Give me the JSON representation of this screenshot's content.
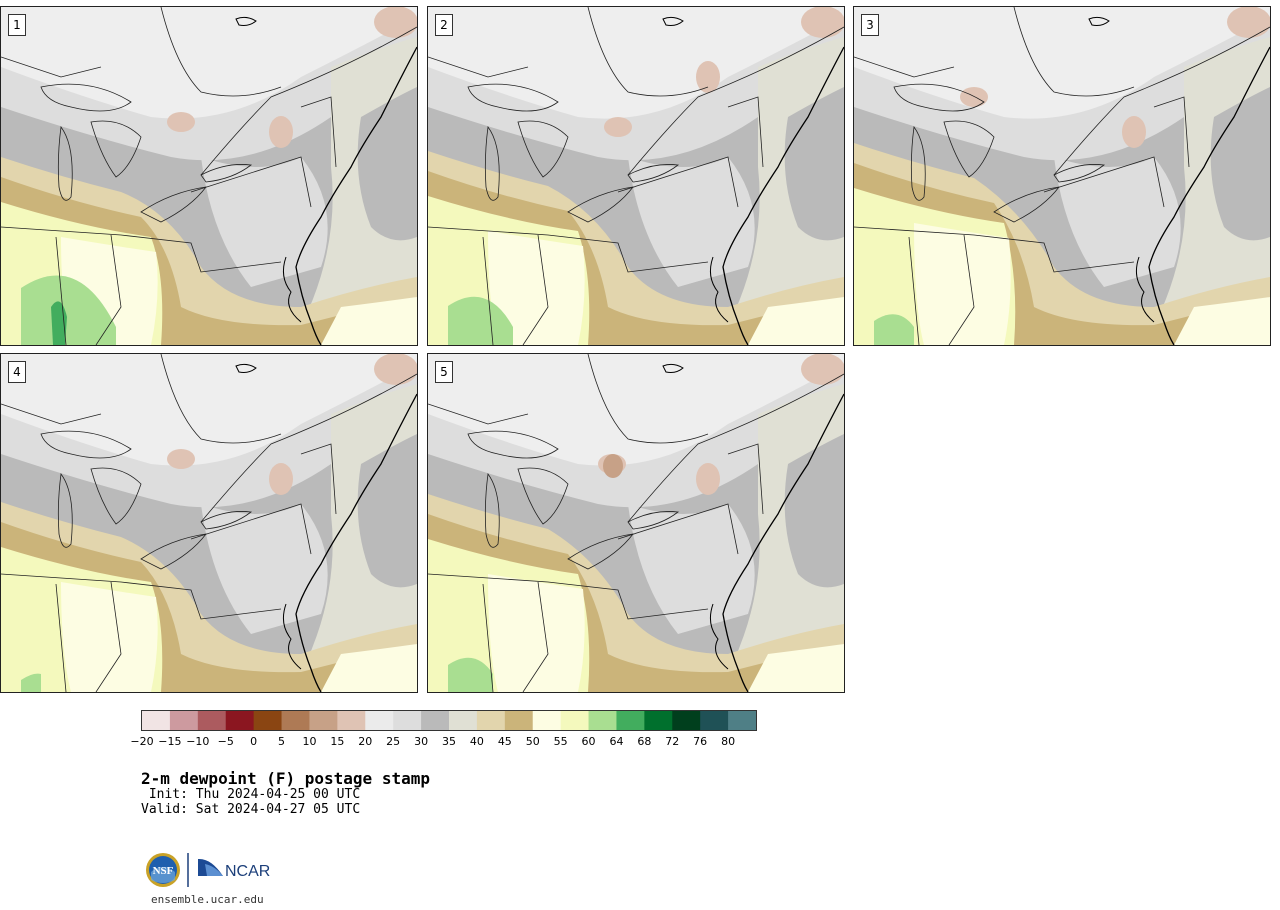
{
  "panels": [
    {
      "label": "1",
      "variant": 0
    },
    {
      "label": "2",
      "variant": 1
    },
    {
      "label": "3",
      "variant": 2
    },
    {
      "label": "4",
      "variant": 3
    },
    {
      "label": "5",
      "variant": 4
    }
  ],
  "colorbar": {
    "colors": [
      "#f1e4e4",
      "#cd9a9f",
      "#ac5b5f",
      "#8b1620",
      "#8a4512",
      "#ae7a55",
      "#c7a187",
      "#dfc3b4",
      "#ebebeb",
      "#dddddd",
      "#bababa",
      "#e0e0d4",
      "#e2d5ad",
      "#cbb47a",
      "#fdfde3",
      "#f4f9bd",
      "#a9de91",
      "#42ad5e",
      "#00702d",
      "#003f1d",
      "#1f5156",
      "#4f7f86"
    ],
    "tick_labels": [
      "−20",
      "−15",
      "−10",
      "−5",
      "0",
      "5",
      "10",
      "15",
      "20",
      "25",
      "30",
      "35",
      "40",
      "45",
      "50",
      "55",
      "60",
      "64",
      "68",
      "72",
      "76",
      "80"
    ]
  },
  "title": "2-m dewpoint (F) postage stamp",
  "init": " Init: Thu 2024-04-25 00 UTC",
  "valid": "Valid: Sat 2024-04-27 05 UTC",
  "logos": {
    "nsf": "NSF",
    "ncar": "NCAR"
  },
  "url": "ensemble.ucar.edu"
}
